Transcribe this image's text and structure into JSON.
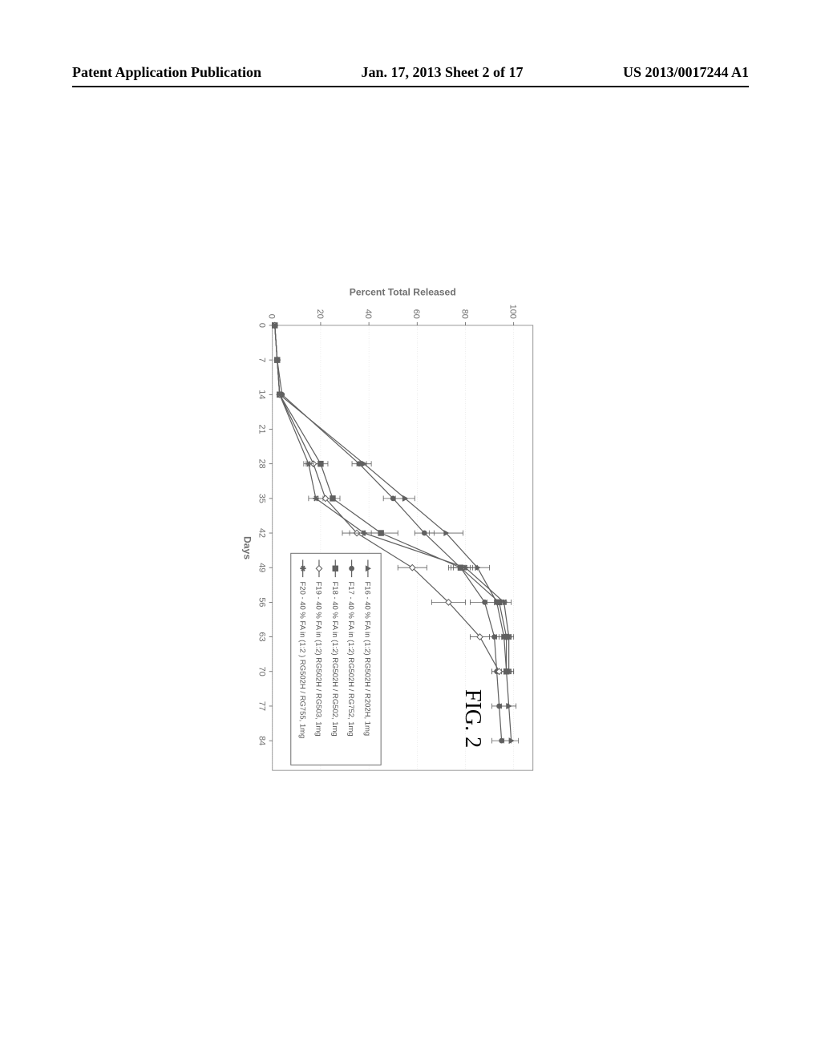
{
  "header": {
    "left": "Patent Application Publication",
    "center": "Jan. 17, 2013  Sheet 2 of 17",
    "right": "US 2013/0017244 A1"
  },
  "figure_label": "FIG. 2",
  "chart": {
    "type": "line",
    "xlabel": "Days",
    "ylabel": "Percent Total Released",
    "xlim": [
      0,
      90
    ],
    "ylim": [
      0,
      108
    ],
    "xticks": [
      0,
      7,
      14,
      21,
      28,
      35,
      42,
      49,
      56,
      63,
      70,
      77,
      84
    ],
    "yticks": [
      0,
      20,
      40,
      60,
      80,
      100
    ],
    "background_color": "#ffffff",
    "grid_color": "#b0b0b0",
    "line_color": "#606060",
    "text_color": "#707070",
    "label_fontsize": 18,
    "tick_fontsize": 16,
    "legend": {
      "position": "inside-lower-right",
      "items": [
        {
          "label": "F16 - 40 % FA in (1:2) RG502H / R202H, 1mg",
          "marker": "triangle"
        },
        {
          "label": "F17 - 40 % FA in (1:2) RG502H / RG752, 1mg",
          "marker": "circle"
        },
        {
          "label": "F18 - 40 % FA in (1:2) RG502H / RG502, 1mg",
          "marker": "square"
        },
        {
          "label": "F19 - 40 % FA in (1:2) RG502H / RG503, 1mg",
          "marker": "diamond"
        },
        {
          "label": "F20 - 40 % FA in (1:2 ) RG502H / RG755, 1mg",
          "marker": "asterisk"
        }
      ]
    },
    "series": [
      {
        "name": "F16",
        "marker": "triangle",
        "x": [
          0,
          7,
          14,
          28,
          35,
          42,
          49,
          56,
          63,
          70,
          77,
          84
        ],
        "y": [
          1,
          2,
          3,
          38,
          55,
          72,
          85,
          93,
          96,
          97,
          98,
          99
        ],
        "err": [
          0,
          0,
          0,
          3,
          4,
          7,
          5,
          4,
          3,
          3,
          3,
          3
        ]
      },
      {
        "name": "F17",
        "marker": "circle",
        "x": [
          0,
          7,
          14,
          28,
          35,
          42,
          49,
          56,
          63,
          70,
          77,
          84
        ],
        "y": [
          1,
          2,
          4,
          36,
          50,
          63,
          78,
          88,
          92,
          93,
          94,
          95
        ],
        "err": [
          0,
          0,
          0,
          3,
          4,
          4,
          4,
          6,
          2,
          2,
          3,
          4
        ]
      },
      {
        "name": "F18",
        "marker": "square",
        "x": [
          0,
          7,
          14,
          28,
          35,
          42,
          49,
          56,
          63,
          70
        ],
        "y": [
          1,
          2,
          3,
          20,
          25,
          45,
          78,
          94,
          97,
          97
        ],
        "err": [
          0,
          0,
          0,
          3,
          3,
          7,
          5,
          2,
          2,
          2
        ]
      },
      {
        "name": "F19",
        "marker": "diamond",
        "x": [
          0,
          7,
          14,
          28,
          35,
          42,
          49,
          56,
          63,
          70
        ],
        "y": [
          1,
          2,
          3,
          17,
          22,
          35,
          58,
          73,
          86,
          94
        ],
        "err": [
          0,
          0,
          0,
          3,
          3,
          6,
          6,
          7,
          4,
          3
        ]
      },
      {
        "name": "F20",
        "marker": "asterisk",
        "x": [
          0,
          7,
          14,
          28,
          35,
          42,
          49,
          56,
          63,
          70
        ],
        "y": [
          1,
          2,
          3,
          15,
          18,
          38,
          80,
          96,
          98,
          98
        ],
        "err": [
          0,
          0,
          0,
          2,
          3,
          6,
          5,
          3,
          2,
          2
        ]
      }
    ]
  }
}
